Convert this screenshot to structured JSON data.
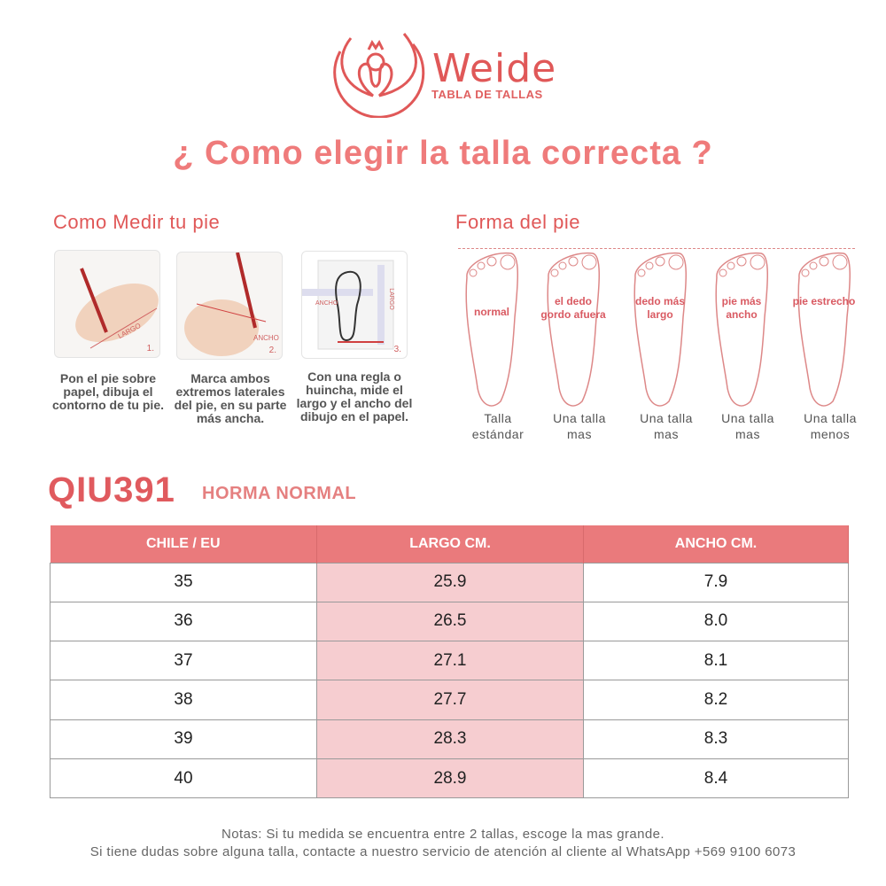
{
  "brand": {
    "name": "Weide",
    "tagline": "TABLA DE TALLAS"
  },
  "title": "¿ Como elegir la talla correcta ?",
  "measure": {
    "heading": "Como Medir tu pie",
    "steps": [
      {
        "number": "1.",
        "label": "LARGO",
        "caption": "Pon el pie sobre papel, dibuja el contorno de tu pie."
      },
      {
        "number": "2.",
        "label": "ANCHO",
        "caption": "Marca ambos extremos laterales del pie, en su parte más ancha."
      },
      {
        "number": "3.",
        "label": "LARGO",
        "label2": "ANCHO",
        "caption": "Con una regla o huincha, mide el largo y el ancho del dibujo en el papel."
      }
    ]
  },
  "foot_shape": {
    "heading": "Forma del pie",
    "types": [
      {
        "label": "normal",
        "advice": "Talla estándar"
      },
      {
        "label": "el dedo gordo afuera",
        "advice": "Una talla mas"
      },
      {
        "label": "dedo más largo",
        "advice": "Una talla mas"
      },
      {
        "label": "pie más ancho",
        "advice": "Una talla mas"
      },
      {
        "label": "pie estrecho",
        "advice": "Una talla menos"
      }
    ]
  },
  "model": {
    "code": "QIU391",
    "last": "HORMA NORMAL"
  },
  "table": {
    "headers": [
      "CHILE / EU",
      "LARGO CM.",
      "ANCHO CM."
    ],
    "rows": [
      [
        "35",
        "25.9",
        "7.9"
      ],
      [
        "36",
        "26.5",
        "8.0"
      ],
      [
        "37",
        "27.1",
        "8.1"
      ],
      [
        "38",
        "27.7",
        "8.2"
      ],
      [
        "39",
        "28.3",
        "8.3"
      ],
      [
        "40",
        "28.9",
        "8.4"
      ]
    ]
  },
  "notes": [
    "Notas: Si tu medida se encuentra entre 2 tallas, escoge la mas grande.",
    "Si tiene dudas sobre alguna talla, contacte a nuestro servicio de atención al cliente al WhatsApp +569 9100 6073"
  ],
  "colors": {
    "accent": "#e05858",
    "header": "#ea7a7c",
    "highlight": "#f6cdd0"
  }
}
